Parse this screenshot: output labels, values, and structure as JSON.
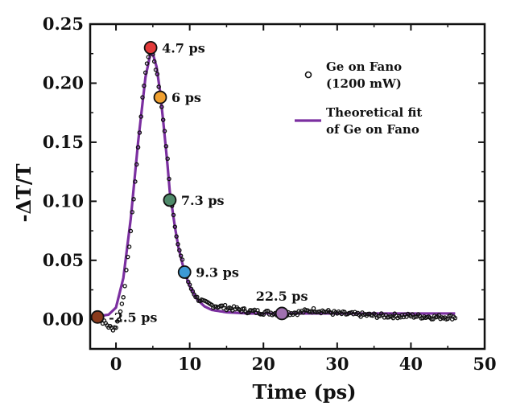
{
  "chart_data": {
    "type": "scatter",
    "xlabel": "Time (ps)",
    "ylabel": "-ΔT/T",
    "xlim": [
      -3.5,
      50
    ],
    "ylim": [
      -0.025,
      0.25
    ],
    "xticks": [
      0,
      10,
      20,
      30,
      40,
      50
    ],
    "yticks": [
      0.0,
      0.05,
      0.1,
      0.15,
      0.2,
      0.25
    ],
    "xtick_labels": [
      "0",
      "10",
      "20",
      "30",
      "40",
      "50"
    ],
    "ytick_labels": [
      "0.00",
      "0.05",
      "0.10",
      "0.15",
      "0.20",
      "0.25"
    ],
    "grid": false,
    "legend_position": "top-right",
    "series": [
      {
        "name": "Ge on Fano (1200 mW)",
        "legend_lines": [
          "Ge on Fano",
          "(1200 mW)"
        ],
        "kind": "scatter",
        "marker": "open-circle",
        "color": "#111111",
        "x_range": [
          -3,
          46
        ],
        "x_step": 0.2,
        "points": [
          [
            -3,
            0.0
          ],
          [
            -2.5,
            0.001
          ],
          [
            -2,
            -0.001
          ],
          [
            -1.5,
            -0.003
          ],
          [
            -1,
            -0.006
          ],
          [
            -0.5,
            -0.008
          ],
          [
            0,
            -0.006
          ],
          [
            0.5,
            0.003
          ],
          [
            1,
            0.02
          ],
          [
            1.5,
            0.045
          ],
          [
            2,
            0.075
          ],
          [
            2.5,
            0.11
          ],
          [
            3,
            0.145
          ],
          [
            3.5,
            0.18
          ],
          [
            4,
            0.21
          ],
          [
            4.5,
            0.226
          ],
          [
            4.7,
            0.228
          ],
          [
            5,
            0.225
          ],
          [
            5.5,
            0.21
          ],
          [
            6,
            0.19
          ],
          [
            6.5,
            0.165
          ],
          [
            7,
            0.135
          ],
          [
            7.3,
            0.11
          ],
          [
            8,
            0.08
          ],
          [
            8.5,
            0.06
          ],
          [
            9.3,
            0.042
          ],
          [
            10,
            0.028
          ],
          [
            11,
            0.018
          ],
          [
            12,
            0.014
          ],
          [
            13,
            0.012
          ],
          [
            14,
            0.011
          ],
          [
            15,
            0.01
          ],
          [
            16,
            0.009
          ],
          [
            17,
            0.008
          ],
          [
            18,
            0.007
          ],
          [
            20,
            0.006
          ],
          [
            22.5,
            0.005
          ],
          [
            25,
            0.006
          ],
          [
            27,
            0.008
          ],
          [
            30,
            0.005
          ],
          [
            33,
            0.004
          ],
          [
            36,
            0.003
          ],
          [
            40,
            0.003
          ],
          [
            43,
            0.002
          ],
          [
            46,
            0.002
          ]
        ]
      },
      {
        "name": "Theoretical fit of Ge on Fano",
        "legend_lines": [
          "Theoretical fit",
          "of Ge on Fano"
        ],
        "kind": "line",
        "color": "#7b2fa0",
        "points": [
          [
            -3,
            0.003
          ],
          [
            -2,
            0.003
          ],
          [
            -1,
            0.004
          ],
          [
            0,
            0.01
          ],
          [
            1,
            0.035
          ],
          [
            2,
            0.085
          ],
          [
            3,
            0.15
          ],
          [
            4,
            0.205
          ],
          [
            4.7,
            0.226
          ],
          [
            5,
            0.225
          ],
          [
            5.5,
            0.214
          ],
          [
            6,
            0.192
          ],
          [
            6.5,
            0.162
          ],
          [
            7,
            0.13
          ],
          [
            7.3,
            0.108
          ],
          [
            8,
            0.078
          ],
          [
            8.5,
            0.06
          ],
          [
            9.3,
            0.04
          ],
          [
            10,
            0.028
          ],
          [
            11,
            0.017
          ],
          [
            12,
            0.011
          ],
          [
            13,
            0.008
          ],
          [
            15,
            0.006
          ],
          [
            18,
            0.005
          ],
          [
            22.5,
            0.005
          ],
          [
            30,
            0.005
          ],
          [
            40,
            0.005
          ],
          [
            46,
            0.005
          ]
        ]
      }
    ],
    "annotations": [
      {
        "x": -2.5,
        "y": 0.002,
        "label": "-2.5 ps",
        "color": "#8a3a1c",
        "label_pos": "right"
      },
      {
        "x": 4.7,
        "y": 0.23,
        "label": "4.7 ps",
        "color": "#e23a3a",
        "label_pos": "right"
      },
      {
        "x": 6,
        "y": 0.188,
        "label": "6 ps",
        "color": "#f0a030",
        "label_pos": "right"
      },
      {
        "x": 7.3,
        "y": 0.101,
        "label": "7.3 ps",
        "color": "#4f8a6a",
        "label_pos": "right"
      },
      {
        "x": 9.3,
        "y": 0.04,
        "label": "9.3 ps",
        "color": "#3d9ad6",
        "label_pos": "right"
      },
      {
        "x": 22.5,
        "y": 0.005,
        "label": "22.5 ps",
        "color": "#a070b0",
        "label_pos": "above"
      }
    ]
  }
}
